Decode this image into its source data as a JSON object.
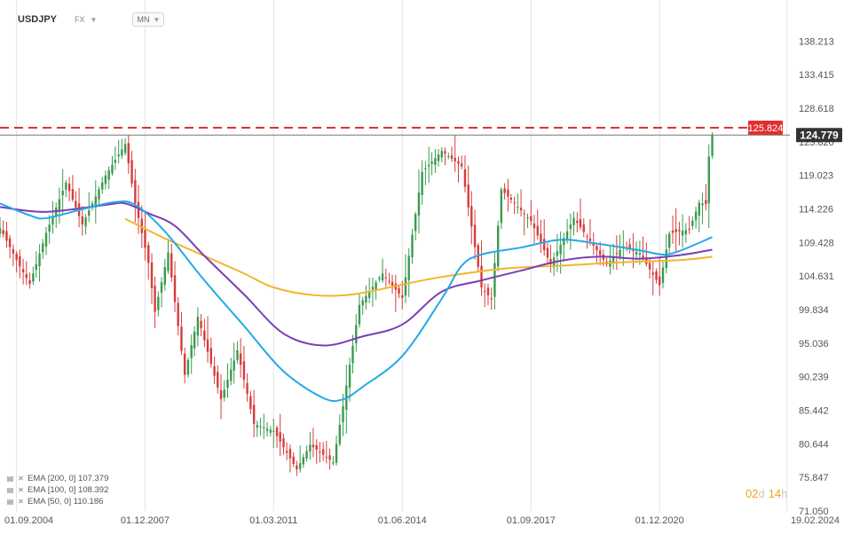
{
  "header": {
    "symbol": "USDJPY",
    "market": "FX",
    "timeframe": "MN"
  },
  "countdown": {
    "days": "02",
    "days_unit": "d",
    "hours": "14",
    "hours_unit": "h"
  },
  "legend": [
    {
      "text": "EMA  [200,  0]  107.379",
      "color": "#f3b52b"
    },
    {
      "text": "EMA  [100,  0]  108.392",
      "color": "#7a3fb5"
    },
    {
      "text": "EMA  [50,  0]  110.186",
      "color": "#25a9e6"
    }
  ],
  "chart_data": {
    "type": "candlestick",
    "instrument": "USDJPY",
    "timeframe": "monthly",
    "x_range": [
      "2004-04-01",
      "2024-03-01"
    ],
    "ylim": [
      71.05,
      141.8
    ],
    "y_ticks": [
      138.213,
      133.415,
      128.618,
      123.82,
      119.023,
      114.226,
      109.428,
      104.631,
      99.834,
      95.036,
      90.239,
      85.442,
      80.644,
      75.847,
      71.05
    ],
    "y_tick_labels": [
      "138.213",
      "133.415",
      "128.618",
      "123.820",
      "119.023",
      "114.226",
      "109.428",
      "104.631",
      "99.834",
      "95.036",
      "90.239",
      "85.442",
      "80.644",
      "75.847",
      "71.050"
    ],
    "x_ticks": [
      {
        "date": "2004-09-01",
        "label": "01.09.2004"
      },
      {
        "date": "2007-12-01",
        "label": "01.12.2007"
      },
      {
        "date": "2011-03-01",
        "label": "01.03.2011"
      },
      {
        "date": "2014-06-01",
        "label": "01.06.2014"
      },
      {
        "date": "2017-09-01",
        "label": "01.09.2017"
      },
      {
        "date": "2020-12-01",
        "label": "01.12.2020"
      },
      {
        "date": "2024-02-19",
        "label": "19.02.2024"
      }
    ],
    "grid": {
      "vertical": true,
      "horizontal": false
    },
    "colors": {
      "up": "#3a9a4f",
      "down": "#d63c3c",
      "ema200": "#f3b52b",
      "ema100": "#7a3fb5",
      "ema50": "#25a9e6"
    },
    "last_price": {
      "value": 124.779,
      "label": "124.779",
      "color": "#333333"
    },
    "resistance": {
      "value": 125.824,
      "label": "125.824",
      "color": "#e03030",
      "style": "dashed"
    },
    "close_anchors": [
      [
        "2004-04-01",
        111.5
      ],
      [
        "2004-10-01",
        106.0
      ],
      [
        "2005-01-01",
        103.5
      ],
      [
        "2005-06-01",
        110.8
      ],
      [
        "2005-12-01",
        118.0
      ],
      [
        "2006-05-01",
        112.0
      ],
      [
        "2006-12-01",
        119.0
      ],
      [
        "2007-06-01",
        123.5
      ],
      [
        "2007-09-01",
        115.0
      ],
      [
        "2008-01-01",
        106.5
      ],
      [
        "2008-03-01",
        99.5
      ],
      [
        "2008-07-01",
        108.0
      ],
      [
        "2008-12-01",
        90.5
      ],
      [
        "2009-04-01",
        98.8
      ],
      [
        "2009-11-01",
        87.0
      ],
      [
        "2010-04-01",
        94.0
      ],
      [
        "2010-09-01",
        83.5
      ],
      [
        "2011-03-01",
        82.5
      ],
      [
        "2011-10-01",
        77.0
      ],
      [
        "2012-02-01",
        80.5
      ],
      [
        "2012-09-01",
        78.0
      ],
      [
        "2012-12-01",
        86.0
      ],
      [
        "2013-05-01",
        100.5
      ],
      [
        "2013-12-01",
        105.0
      ],
      [
        "2014-06-01",
        101.5
      ],
      [
        "2014-12-01",
        119.5
      ],
      [
        "2015-06-01",
        122.5
      ],
      [
        "2015-12-01",
        120.3
      ],
      [
        "2016-06-01",
        103.0
      ],
      [
        "2016-09-01",
        101.3
      ],
      [
        "2016-12-01",
        117.0
      ],
      [
        "2017-09-01",
        112.5
      ],
      [
        "2018-03-01",
        106.3
      ],
      [
        "2018-10-01",
        112.9
      ],
      [
        "2019-08-01",
        106.3
      ],
      [
        "2020-01-01",
        108.9
      ],
      [
        "2020-06-01",
        107.9
      ],
      [
        "2020-12-01",
        103.3
      ],
      [
        "2021-03-01",
        110.7
      ],
      [
        "2021-09-01",
        111.3
      ],
      [
        "2021-12-01",
        115.1
      ],
      [
        "2022-02-01",
        114.9
      ],
      [
        "2022-03-01",
        121.7
      ],
      [
        "2022-04-01",
        124.78
      ]
    ],
    "ema200": [
      [
        "2007-06-01",
        112.8
      ],
      [
        "2008-06-01",
        110.0
      ],
      [
        "2009-06-01",
        107.5
      ],
      [
        "2010-06-01",
        105.0
      ],
      [
        "2011-03-01",
        103.0
      ],
      [
        "2012-03-01",
        101.9
      ],
      [
        "2013-03-01",
        102.0
      ],
      [
        "2014-06-01",
        103.4
      ],
      [
        "2015-06-01",
        104.5
      ],
      [
        "2017-01-01",
        105.7
      ],
      [
        "2018-06-01",
        106.1
      ],
      [
        "2020-01-01",
        106.6
      ],
      [
        "2021-06-01",
        106.9
      ],
      [
        "2022-04-01",
        107.38
      ]
    ],
    "ema100": [
      [
        "2004-04-01",
        114.5
      ],
      [
        "2005-06-01",
        113.8
      ],
      [
        "2006-12-01",
        114.8
      ],
      [
        "2007-06-01",
        115.0
      ],
      [
        "2008-01-01",
        113.6
      ],
      [
        "2008-09-01",
        111.8
      ],
      [
        "2009-06-01",
        107.5
      ],
      [
        "2010-06-01",
        102.0
      ],
      [
        "2011-06-01",
        96.4
      ],
      [
        "2012-06-01",
        94.7
      ],
      [
        "2013-06-01",
        96.0
      ],
      [
        "2014-06-01",
        97.7
      ],
      [
        "2015-06-01",
        102.4
      ],
      [
        "2016-06-01",
        104.0
      ],
      [
        "2017-06-01",
        105.4
      ],
      [
        "2018-06-01",
        106.8
      ],
      [
        "2019-06-01",
        107.4
      ],
      [
        "2020-06-01",
        107.1
      ],
      [
        "2021-06-01",
        107.6
      ],
      [
        "2022-04-01",
        108.39
      ]
    ],
    "ema50": [
      [
        "2004-04-01",
        115.0
      ],
      [
        "2005-01-01",
        113.3
      ],
      [
        "2005-06-01",
        112.9
      ],
      [
        "2006-06-01",
        114.3
      ],
      [
        "2007-03-01",
        115.2
      ],
      [
        "2007-09-01",
        114.8
      ],
      [
        "2008-06-01",
        111.0
      ],
      [
        "2009-06-01",
        104.0
      ],
      [
        "2010-06-01",
        97.5
      ],
      [
        "2011-06-01",
        91.0
      ],
      [
        "2012-06-01",
        87.2
      ],
      [
        "2012-12-01",
        87.0
      ],
      [
        "2013-06-01",
        88.8
      ],
      [
        "2014-06-01",
        93.2
      ],
      [
        "2015-06-01",
        101.4
      ],
      [
        "2015-12-01",
        106.1
      ],
      [
        "2016-06-01",
        107.7
      ],
      [
        "2017-06-01",
        108.7
      ],
      [
        "2018-06-01",
        109.8
      ],
      [
        "2019-06-01",
        109.2
      ],
      [
        "2020-06-01",
        108.3
      ],
      [
        "2021-01-01",
        107.7
      ],
      [
        "2021-06-01",
        108.2
      ],
      [
        "2022-04-01",
        110.19
      ]
    ]
  }
}
